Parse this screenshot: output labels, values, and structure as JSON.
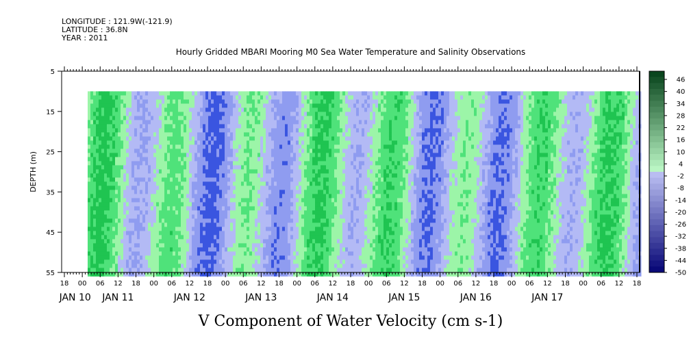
{
  "header": {
    "longitude": "LONGITUDE : 121.9W(-121.9)",
    "latitude": "LATITUDE : 36.8N",
    "year": "YEAR : 2011"
  },
  "chart_data": {
    "type": "heatmap",
    "title": "Hourly Gridded MBARI Mooring M0 Sea Water Temperature and Salinity Observations",
    "xlabel": "V Component of Water Velocity (cm s-1)",
    "ylabel": "DEPTH (m)",
    "ylim": [
      55,
      5
    ],
    "y_ticks": [
      5,
      15,
      25,
      35,
      45,
      55
    ],
    "data_depth_range": [
      10,
      55
    ],
    "x_range_hours_label": "JAN 10 18:00 to JAN 17 18:00",
    "x_hour_tick_labels": [
      "18",
      "00",
      "06",
      "12",
      "18",
      "00",
      "06",
      "12",
      "18",
      "00",
      "06",
      "12",
      "18",
      "00",
      "06",
      "12",
      "18",
      "00",
      "06",
      "12",
      "18",
      "00",
      "06",
      "12",
      "18",
      "00",
      "06",
      "12",
      "18",
      "00",
      "06",
      "12",
      "18"
    ],
    "x_date_labels": [
      "JAN 10",
      "JAN 11",
      "JAN 12",
      "JAN 13",
      "JAN 14",
      "JAN 15",
      "JAN 16",
      "JAN 17"
    ],
    "colorbar": {
      "labels": [
        "46",
        "40",
        "34",
        "28",
        "22",
        "16",
        "10",
        "4",
        "-2",
        "-8",
        "-14",
        "-20",
        "-26",
        "-32",
        "-38",
        "-44",
        "-50"
      ],
      "range": [
        -50,
        52
      ]
    },
    "colors": {
      "negative_strong": "#3a55e0",
      "negative_mid": "#8f9cf0",
      "negative_light": "#b3baf5",
      "positive_light": "#9cf5a8",
      "positive_mid": "#4fe27a",
      "positive_strong": "#1fc451"
    }
  }
}
